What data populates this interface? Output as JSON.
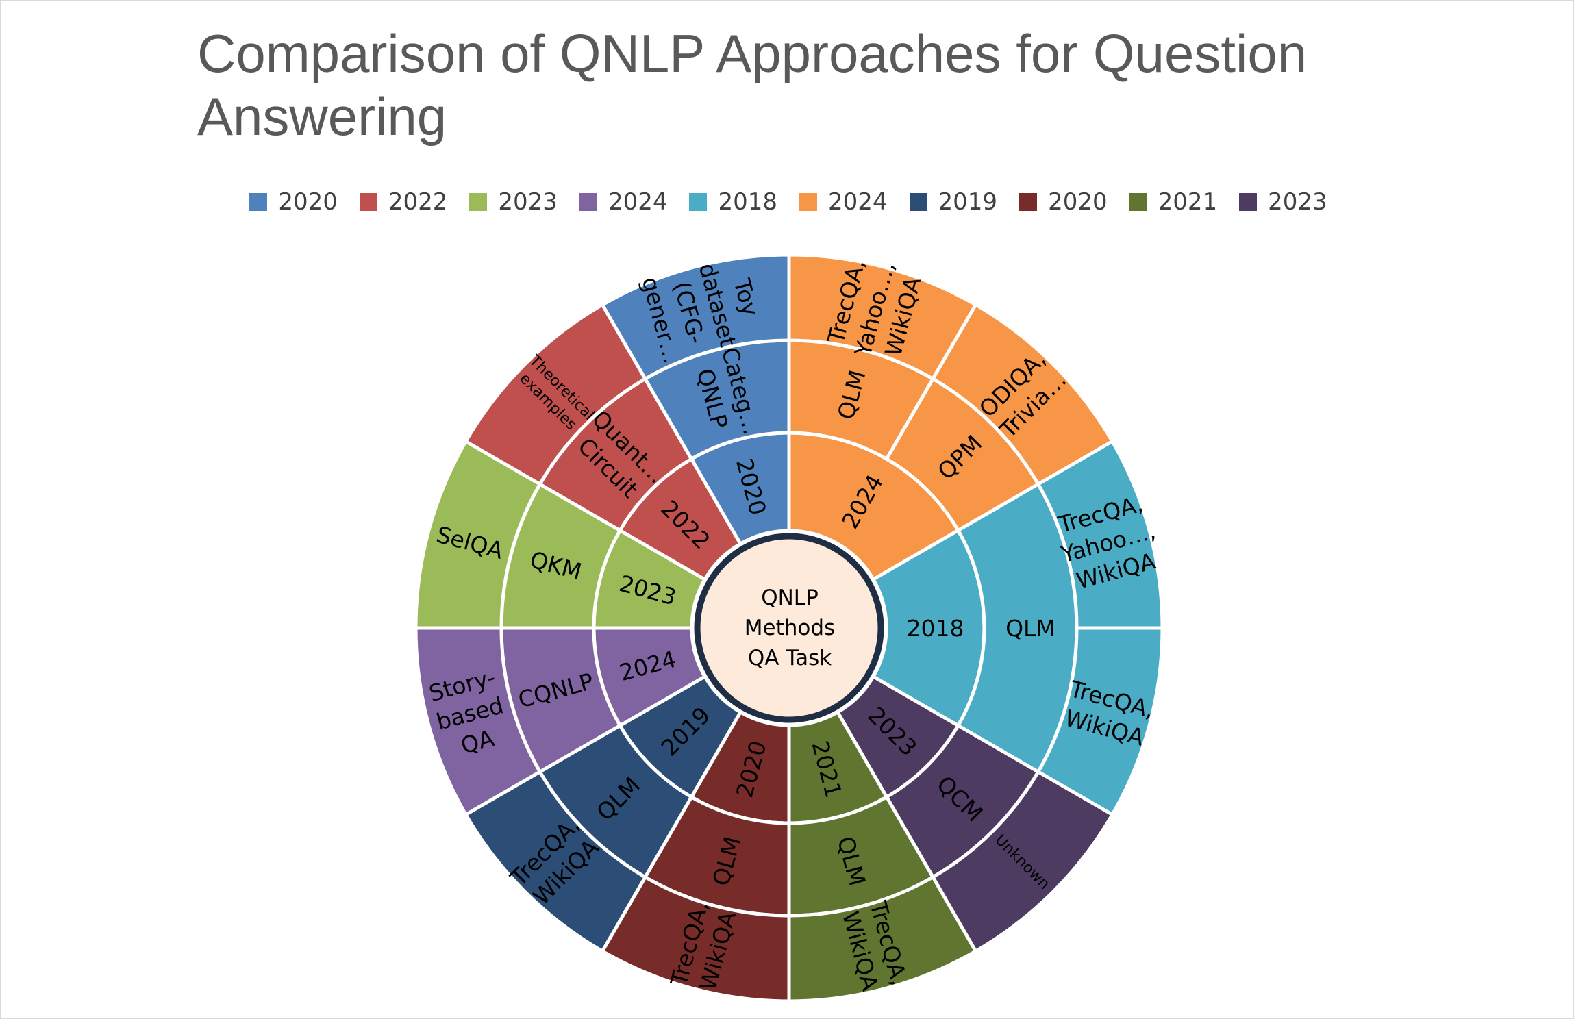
{
  "chart_data": {
    "type": "sunburst",
    "title": "Comparison of QNLP Approaches for Question Answering",
    "center_label": [
      "QNLP",
      "Methods",
      "QA Task"
    ],
    "legend": [
      {
        "label": "2020",
        "color": "#4F81BD"
      },
      {
        "label": "2022",
        "color": "#C0504D"
      },
      {
        "label": "2023",
        "color": "#9BBB59"
      },
      {
        "label": "2024",
        "color": "#8064A2"
      },
      {
        "label": "2018",
        "color": "#4BACC6"
      },
      {
        "label": "2024",
        "color": "#F79646"
      },
      {
        "label": "2019",
        "color": "#2C4D75"
      },
      {
        "label": "2020",
        "color": "#772C2A"
      },
      {
        "label": "2021",
        "color": "#5F7530"
      },
      {
        "label": "2023",
        "color": "#4D3B62"
      }
    ],
    "groups": [
      {
        "year": "2024",
        "color": "#F79646",
        "children": [
          {
            "method": "QLM",
            "tasks": [
              "TrecQA, Yahoo…, WikiQA"
            ]
          },
          {
            "method": "QPM",
            "tasks": [
              "ODIQA, Trivia…"
            ]
          }
        ]
      },
      {
        "year": "2018",
        "color": "#4BACC6",
        "children": [
          {
            "method": "QLM",
            "tasks": [
              "TrecQA, Yahoo…, WikiQA",
              "TrecQA, WikiQA"
            ]
          }
        ]
      },
      {
        "year": "2023",
        "color": "#4D3B62",
        "children": [
          {
            "method": "QCM",
            "tasks": [
              "Unknown"
            ]
          }
        ]
      },
      {
        "year": "2021",
        "color": "#5F7530",
        "children": [
          {
            "method": "QLM",
            "tasks": [
              "TrecQA, WikiQA"
            ]
          }
        ]
      },
      {
        "year": "2020",
        "color": "#772C2A",
        "children": [
          {
            "method": "QLM",
            "tasks": [
              "TrecQA, WikiQA"
            ]
          }
        ]
      },
      {
        "year": "2019",
        "color": "#2C4D75",
        "children": [
          {
            "method": "QLM",
            "tasks": [
              "TrecQA, WikiQA"
            ]
          }
        ]
      },
      {
        "year": "2024",
        "color": "#8064A2",
        "children": [
          {
            "method": "CQNLP",
            "tasks": [
              "Story-based QA"
            ]
          }
        ]
      },
      {
        "year": "2023",
        "color": "#9BBB59",
        "children": [
          {
            "method": "QKM",
            "tasks": [
              "SelQA"
            ]
          }
        ]
      },
      {
        "year": "2022",
        "color": "#C0504D",
        "children": [
          {
            "method": "Quant… Circuit",
            "tasks": [
              "Theoretical examples"
            ]
          }
        ]
      },
      {
        "year": "2020",
        "color": "#4F81BD",
        "children": [
          {
            "method": "Categ… QNLP",
            "tasks": [
              "Toy dataset (CFG-gener…"
            ]
          }
        ]
      }
    ]
  }
}
